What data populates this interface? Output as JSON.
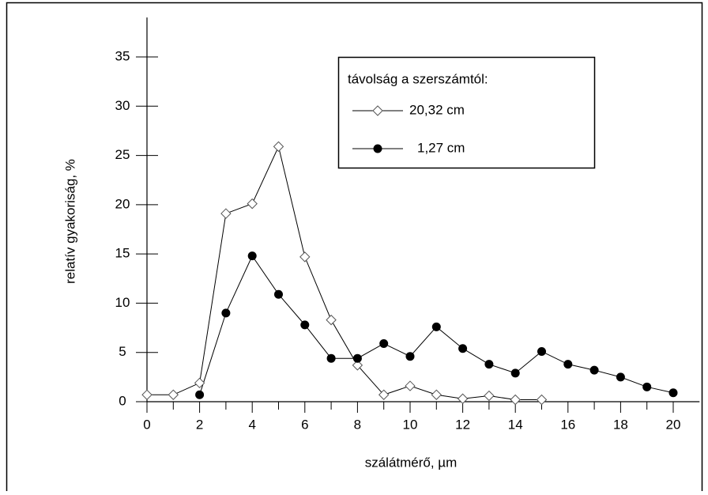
{
  "chart_data": {
    "type": "line",
    "xlabel": "szálátmérő, µm",
    "ylabel": "relatív gyakoriság, %",
    "legend_title": "távolság a szerszámtól:",
    "legend": "upper right",
    "xlim": [
      0,
      21
    ],
    "ylim": [
      0,
      39
    ],
    "xticks": [
      0,
      2,
      4,
      6,
      8,
      10,
      12,
      14,
      16,
      18,
      20
    ],
    "xminorticks": [
      1,
      3,
      5,
      7,
      9,
      11,
      13,
      15,
      17,
      19
    ],
    "yticks": [
      0,
      5,
      10,
      15,
      20,
      25,
      30,
      35
    ],
    "series": [
      {
        "name": "20,32 cm",
        "marker": "diamond",
        "color": "#000000",
        "x": [
          0,
          1,
          2,
          3,
          4,
          5,
          6,
          7,
          8,
          9,
          10,
          11,
          12,
          13,
          14,
          15
        ],
        "values": [
          0.7,
          0.7,
          1.9,
          19.1,
          20.1,
          25.9,
          14.7,
          8.3,
          3.7,
          0.7,
          1.6,
          0.7,
          0.3,
          0.6,
          0.2,
          0.2
        ]
      },
      {
        "name": "1,27 cm",
        "marker": "circle",
        "color": "#000000",
        "x": [
          2,
          3,
          4,
          5,
          6,
          7,
          8,
          9,
          10,
          11,
          12,
          13,
          14,
          15,
          16,
          17,
          18,
          19,
          20
        ],
        "values": [
          0.7,
          9.0,
          14.8,
          10.9,
          7.8,
          4.4,
          4.4,
          5.9,
          4.6,
          7.6,
          5.4,
          3.8,
          2.9,
          5.1,
          3.8,
          3.2,
          2.5,
          1.5,
          0.9
        ]
      }
    ]
  }
}
